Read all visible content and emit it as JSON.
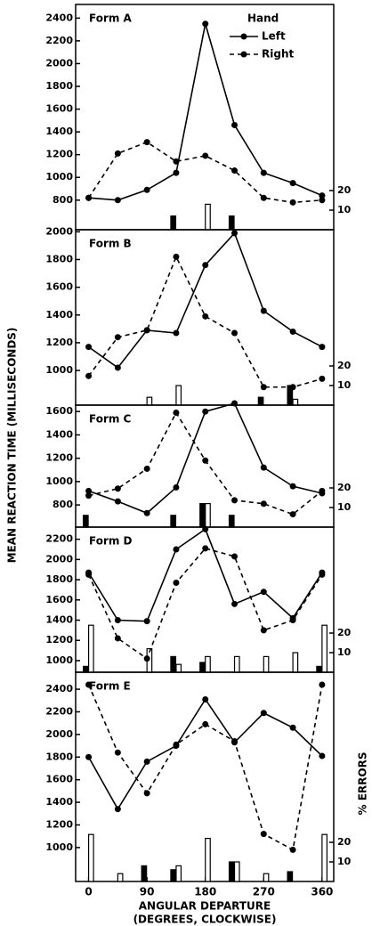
{
  "figure": {
    "ylabel": "MEAN REACTION TIME (MILLISECONDS)",
    "y2label": "% ERRORS",
    "xlabel": "ANGULAR DEPARTURE",
    "xsublabel": "(DEGREES, CLOCKWISE)",
    "xlim": [
      -20,
      378
    ],
    "xticks": [
      0,
      90,
      180,
      270,
      360
    ],
    "legend_title": "Hand"
  },
  "chart_data": [
    {
      "type": "line",
      "title": "Form A",
      "legend": true,
      "x": [
        0,
        45,
        90,
        135,
        180,
        225,
        270,
        315,
        360
      ],
      "series": [
        {
          "name": "Left",
          "color": "#000000",
          "linestyle": "solid",
          "values": [
            820,
            800,
            890,
            1040,
            2350,
            1460,
            1040,
            950,
            840
          ],
          "errors": [
            0,
            0,
            0,
            7,
            0,
            7,
            0,
            0,
            0
          ]
        },
        {
          "name": "Right",
          "color": "#000000",
          "linestyle": "dashed",
          "values": [
            820,
            1210,
            1310,
            1140,
            1190,
            1060,
            820,
            780,
            800
          ],
          "errors": [
            0,
            0,
            0,
            0,
            13,
            0,
            0,
            0,
            0
          ]
        }
      ],
      "ylim": [
        540,
        2520
      ],
      "yticks": [
        800,
        1000,
        1200,
        1400,
        1600,
        1800,
        2000,
        2200,
        2400
      ],
      "y2lim": [
        0,
        25
      ],
      "y2ticks": [
        10,
        20
      ]
    },
    {
      "type": "line",
      "title": "Form B",
      "x": [
        0,
        45,
        90,
        135,
        180,
        225,
        270,
        315,
        360
      ],
      "series": [
        {
          "name": "Left",
          "color": "#000000",
          "linestyle": "solid",
          "values": [
            1170,
            1020,
            1290,
            1270,
            1760,
            1990,
            1430,
            1280,
            1170
          ],
          "errors": [
            0,
            0,
            0,
            0,
            0,
            0,
            4,
            10,
            0
          ]
        },
        {
          "name": "Right",
          "color": "#000000",
          "linestyle": "dashed",
          "values": [
            960,
            1240,
            1290,
            1820,
            1390,
            1270,
            880,
            880,
            940
          ],
          "errors": [
            0,
            0,
            4,
            10,
            0,
            0,
            0,
            3,
            0
          ]
        }
      ],
      "ylim": [
        750,
        2015
      ],
      "yticks": [
        1000,
        1200,
        1400,
        1600,
        1800,
        2000
      ],
      "y2lim": [
        0,
        25
      ],
      "y2ticks": [
        10,
        20
      ]
    },
    {
      "type": "line",
      "title": "Form C",
      "x": [
        0,
        45,
        90,
        135,
        180,
        225,
        270,
        315,
        360
      ],
      "series": [
        {
          "name": "Left",
          "color": "#000000",
          "linestyle": "solid",
          "values": [
            920,
            830,
            730,
            950,
            1600,
            1670,
            1120,
            960,
            900
          ],
          "errors": [
            6,
            0,
            0,
            6,
            12,
            6,
            0,
            0,
            0
          ]
        },
        {
          "name": "Right",
          "color": "#000000",
          "linestyle": "dashed",
          "values": [
            880,
            940,
            1110,
            1590,
            1180,
            840,
            810,
            720,
            920
          ],
          "errors": [
            0,
            0,
            0,
            0,
            12,
            0,
            0,
            0,
            0
          ]
        }
      ],
      "ylim": [
        610,
        1655
      ],
      "yticks": [
        800,
        1000,
        1200,
        1400,
        1600
      ],
      "y2lim": [
        0,
        25
      ],
      "y2ticks": [
        10,
        20
      ]
    },
    {
      "type": "line",
      "title": "Form D",
      "x": [
        0,
        45,
        90,
        135,
        180,
        225,
        270,
        315,
        360
      ],
      "series": [
        {
          "name": "Left",
          "color": "#000000",
          "linestyle": "solid",
          "values": [
            1870,
            1400,
            1390,
            2100,
            2300,
            1560,
            1680,
            1420,
            1870
          ],
          "errors": [
            3,
            0,
            0,
            8,
            5,
            0,
            0,
            0,
            3
          ]
        },
        {
          "name": "Right",
          "color": "#000000",
          "linestyle": "dashed",
          "values": [
            1850,
            1220,
            1020,
            1770,
            2110,
            2030,
            1300,
            1400,
            1850
          ],
          "errors": [
            24,
            0,
            12,
            4,
            8,
            8,
            8,
            10,
            24
          ]
        }
      ],
      "ylim": [
        885,
        2320
      ],
      "yticks": [
        1000,
        1200,
        1400,
        1600,
        1800,
        2000,
        2200
      ],
      "y2lim": [
        0,
        25
      ],
      "y2ticks": [
        10,
        20
      ]
    },
    {
      "type": "line",
      "title": "Form E",
      "x": [
        0,
        45,
        90,
        135,
        180,
        225,
        270,
        315,
        360
      ],
      "series": [
        {
          "name": "Left",
          "color": "#000000",
          "linestyle": "solid",
          "values": [
            1800,
            1340,
            1760,
            1900,
            2310,
            1930,
            2190,
            2060,
            1810
          ],
          "errors": [
            0,
            0,
            8,
            6,
            0,
            10,
            0,
            5,
            0
          ]
        },
        {
          "name": "Right",
          "color": "#000000",
          "linestyle": "dashed",
          "values": [
            2440,
            1840,
            1480,
            1910,
            2090,
            1940,
            1120,
            980,
            2440
          ],
          "errors": [
            24,
            4,
            0,
            8,
            22,
            10,
            4,
            0,
            24
          ]
        }
      ],
      "ylim": [
        700,
        2550
      ],
      "yticks": [
        1000,
        1200,
        1400,
        1600,
        1800,
        2000,
        2200,
        2400
      ],
      "y2lim": [
        0,
        25
      ],
      "y2ticks": [
        10,
        20
      ]
    }
  ]
}
